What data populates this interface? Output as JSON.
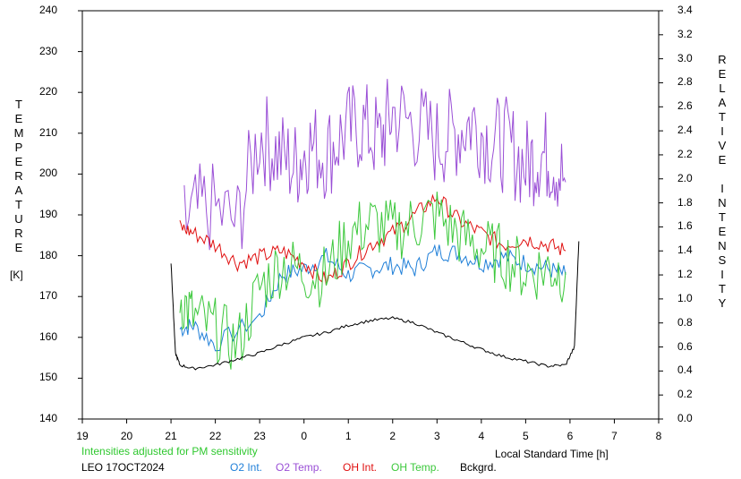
{
  "chart_data": {
    "type": "line",
    "left_axis": {
      "label": "TEMPERATURE",
      "unit": "[K]",
      "range": [
        140,
        240
      ],
      "ticks": [
        "140",
        "150",
        "160",
        "170",
        "180",
        "190",
        "200",
        "210",
        "220",
        "230",
        "240"
      ]
    },
    "right_axis": {
      "label": "RELATIVE INTENSITY",
      "range": [
        0.0,
        3.4
      ],
      "ticks": [
        "0.0",
        "0.2",
        "0.4",
        "0.6",
        "0.8",
        "1.0",
        "1.2",
        "1.4",
        "1.6",
        "1.8",
        "2.0",
        "2.2",
        "2.4",
        "2.6",
        "2.8",
        "3.0",
        "3.2",
        "3.4"
      ]
    },
    "x_axis": {
      "label": "Local Standard Time [h]",
      "ticks": [
        "19",
        "20",
        "21",
        "22",
        "23",
        "0",
        "1",
        "2",
        "3",
        "4",
        "5",
        "6",
        "7",
        "8"
      ],
      "range": [
        19,
        32
      ]
    },
    "note": "Intensities adjusted for PM sensitivity",
    "station": "LEO 17OCT2024",
    "series": [
      {
        "name": "O2 Int.",
        "color": "#1f7fd8",
        "axis": "right",
        "x": [
          21.2,
          21.5,
          22.0,
          23.0,
          23.5,
          24.0,
          24.5,
          25.0,
          25.5,
          26.0,
          26.5,
          27.0,
          27.5,
          28.0,
          28.5,
          29.0,
          29.5,
          29.9
        ],
        "y": [
          0.75,
          0.78,
          0.62,
          0.85,
          1.2,
          1.25,
          1.35,
          1.2,
          1.25,
          1.28,
          1.25,
          1.4,
          1.38,
          1.3,
          1.35,
          1.3,
          1.25,
          1.2
        ]
      },
      {
        "name": "O2 Temp.",
        "color": "#9a4fd6",
        "axis": "left",
        "x": [
          21.3,
          21.8,
          22.5,
          23.0,
          23.4,
          23.8,
          24.1,
          24.5,
          24.9,
          25.3,
          25.7,
          26.0,
          26.5,
          27.0,
          27.4,
          27.8,
          28.2,
          28.6,
          29.0,
          29.3,
          29.6,
          29.9
        ],
        "y": [
          188,
          192,
          188,
          210,
          205,
          202,
          207,
          205,
          210,
          212,
          208,
          215,
          212,
          208,
          210,
          213,
          208,
          207,
          202,
          205,
          204,
          198
        ]
      },
      {
        "name": "OH Int.",
        "color": "#e01010",
        "axis": "right",
        "x": [
          21.2,
          21.5,
          22.0,
          22.5,
          23.0,
          23.5,
          24.0,
          24.5,
          25.0,
          25.5,
          26.0,
          26.5,
          27.0,
          27.5,
          28.0,
          28.5,
          29.0,
          29.5,
          29.9
        ],
        "y": [
          1.6,
          1.55,
          1.45,
          1.3,
          1.35,
          1.4,
          1.3,
          1.15,
          1.3,
          1.45,
          1.55,
          1.7,
          1.85,
          1.65,
          1.55,
          1.45,
          1.5,
          1.45,
          1.4
        ]
      },
      {
        "name": "OH Temp.",
        "color": "#3cc83c",
        "axis": "left",
        "x": [
          21.2,
          21.5,
          22.0,
          22.5,
          23.0,
          23.5,
          24.0,
          24.5,
          25.0,
          25.5,
          26.0,
          26.5,
          27.0,
          27.5,
          28.0,
          28.5,
          29.0,
          29.5,
          29.9
        ],
        "y": [
          170,
          165,
          162,
          158,
          172,
          178,
          176,
          175,
          185,
          188,
          186,
          188,
          190,
          185,
          182,
          180,
          176,
          177,
          176
        ]
      },
      {
        "name": "Bckgrd.",
        "color": "#000000",
        "axis": "right",
        "x": [
          21.0,
          21.1,
          21.2,
          21.5,
          22.0,
          22.5,
          23.0,
          23.5,
          24.0,
          24.5,
          25.0,
          25.5,
          26.0,
          26.5,
          27.0,
          27.5,
          28.0,
          28.5,
          29.0,
          29.5,
          29.9,
          30.1,
          30.2
        ],
        "y": [
          1.3,
          0.55,
          0.45,
          0.42,
          0.45,
          0.5,
          0.55,
          0.62,
          0.68,
          0.72,
          0.78,
          0.82,
          0.84,
          0.8,
          0.72,
          0.65,
          0.58,
          0.52,
          0.48,
          0.44,
          0.45,
          0.6,
          1.48
        ]
      }
    ]
  }
}
